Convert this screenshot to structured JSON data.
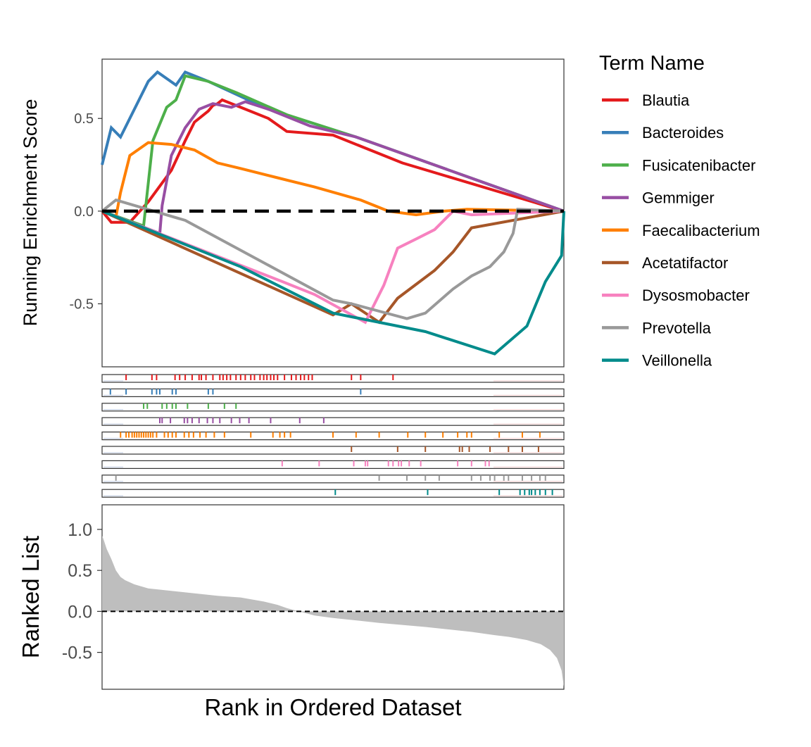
{
  "chart_data": {
    "type": "line",
    "legend": {
      "title": "Term Name",
      "position": "right"
    },
    "es_panel": {
      "ylabel": "Running Enrichment Score",
      "ylim": [
        -0.84,
        0.82
      ],
      "yticks": [
        0.5,
        0.0,
        -0.5
      ],
      "ytick_labels": [
        "0.5",
        "0.0",
        "-0.5"
      ],
      "zero_line": "dashed",
      "series": [
        {
          "name": "Blautia",
          "color": "#E41A1C",
          "x": [
            0,
            20,
            60,
            100,
            150,
            180,
            200,
            230,
            240,
            250,
            260,
            300,
            360,
            400,
            500,
            650,
            1000
          ],
          "y": [
            0,
            -0.06,
            -0.06,
            0.05,
            0.22,
            0.38,
            0.48,
            0.54,
            0.57,
            0.58,
            0.6,
            0.56,
            0.5,
            0.43,
            0.41,
            0.26,
            0
          ]
        },
        {
          "name": "Bacteroides",
          "color": "#377EB8",
          "x": [
            0,
            20,
            40,
            80,
            100,
            120,
            160,
            180,
            230,
            360,
            550,
            1000
          ],
          "y": [
            0.25,
            0.45,
            0.4,
            0.6,
            0.7,
            0.75,
            0.68,
            0.75,
            0.7,
            0.55,
            0.4,
            0
          ]
        },
        {
          "name": "Fusicatenibacter",
          "color": "#4DAF4A",
          "x": [
            0,
            90,
            110,
            140,
            160,
            180,
            230,
            290,
            400,
            550,
            1000
          ],
          "y": [
            0,
            -0.08,
            0.38,
            0.56,
            0.6,
            0.73,
            0.7,
            0.64,
            0.52,
            0.4,
            0
          ]
        },
        {
          "name": "Gemmiger",
          "color": "#984EA3",
          "x": [
            0,
            125,
            130,
            150,
            180,
            210,
            240,
            280,
            310,
            360,
            450,
            550,
            1000
          ],
          "y": [
            0,
            -0.12,
            0.03,
            0.3,
            0.45,
            0.55,
            0.58,
            0.56,
            0.59,
            0.55,
            0.46,
            0.4,
            0
          ]
        },
        {
          "name": "Faecalibacterium",
          "color": "#FF7F00",
          "x": [
            0,
            30,
            40,
            60,
            100,
            150,
            200,
            250,
            300,
            380,
            460,
            560,
            620,
            680,
            740,
            790,
            1000
          ],
          "y": [
            0,
            -0.03,
            0.1,
            0.3,
            0.37,
            0.36,
            0.33,
            0.26,
            0.23,
            0.18,
            0.13,
            0.06,
            0,
            -0.02,
            0,
            0.01,
            0
          ]
        },
        {
          "name": "Acetatifactor",
          "color": "#A65628",
          "x": [
            0,
            500,
            540,
            600,
            640,
            720,
            760,
            800,
            1000
          ],
          "y": [
            0,
            -0.56,
            -0.5,
            -0.6,
            -0.47,
            -0.32,
            -0.22,
            -0.09,
            0
          ]
        },
        {
          "name": "Dysosmobacter",
          "color": "#F781BF",
          "x": [
            0,
            390,
            460,
            570,
            610,
            640,
            680,
            720,
            760,
            800,
            1000
          ],
          "y": [
            0,
            -0.38,
            -0.45,
            -0.6,
            -0.4,
            -0.2,
            -0.15,
            -0.1,
            0.0,
            -0.02,
            0
          ]
        },
        {
          "name": "Prevotella",
          "color": "#999999",
          "x": [
            0,
            30,
            180,
            500,
            540,
            600,
            660,
            700,
            760,
            800,
            840,
            870,
            890,
            900,
            1000
          ],
          "y": [
            0,
            0.06,
            -0.05,
            -0.48,
            -0.5,
            -0.54,
            -0.58,
            -0.55,
            -0.42,
            -0.35,
            -0.3,
            -0.22,
            -0.12,
            0.01,
            0
          ]
        },
        {
          "name": "Veillonella",
          "color": "#008B8B",
          "x": [
            0,
            300,
            500,
            700,
            850,
            920,
            940,
            960,
            980,
            995,
            1000
          ],
          "y": [
            0,
            -0.3,
            -0.55,
            -0.65,
            -0.77,
            -0.62,
            -0.5,
            -0.38,
            -0.3,
            -0.24,
            0
          ]
        }
      ]
    },
    "hit_panel": {
      "rows": [
        {
          "name": "Blautia",
          "hits": [
            52,
            108,
            118,
            158,
            168,
            180,
            195,
            210,
            215,
            225,
            240,
            255,
            262,
            270,
            278,
            290,
            300,
            310,
            322,
            330,
            342,
            350,
            357,
            365,
            372,
            380,
            395,
            410,
            420,
            430,
            438,
            447,
            455,
            540,
            560,
            630
          ]
        },
        {
          "name": "Bacteroides",
          "hits": [
            18,
            52,
            108,
            118,
            125,
            152,
            160,
            230,
            240,
            560
          ]
        },
        {
          "name": "Fusicatenibacter",
          "hits": [
            90,
            98,
            130,
            140,
            152,
            160,
            185,
            230,
            265,
            290
          ]
        },
        {
          "name": "Gemmiger",
          "hits": [
            125,
            130,
            148,
            178,
            185,
            195,
            210,
            228,
            240,
            255,
            280,
            298,
            318,
            365,
            428,
            480
          ]
        },
        {
          "name": "Faecalibacterium",
          "hits": [
            40,
            52,
            58,
            65,
            70,
            75,
            80,
            85,
            90,
            95,
            100,
            105,
            110,
            118,
            135,
            143,
            152,
            160,
            178,
            188,
            198,
            212,
            225,
            243,
            265,
            322,
            370,
            385,
            395,
            408,
            500,
            550,
            600,
            662,
            700,
            738,
            770,
            790,
            800,
            860,
            910,
            948
          ]
        },
        {
          "name": "Acetatifactor",
          "hits": [
            540,
            640,
            700,
            774,
            780,
            795,
            840,
            880,
            910,
            945
          ]
        },
        {
          "name": "Dysosmobacter",
          "hits": [
            390,
            470,
            545,
            570,
            575,
            620,
            630,
            642,
            648,
            665,
            690,
            770,
            800,
            830,
            838
          ]
        },
        {
          "name": "Prevotella",
          "hits": [
            30,
            600,
            660,
            700,
            730,
            800,
            820,
            840,
            850,
            870,
            880,
            910,
            930,
            948,
            960
          ]
        },
        {
          "name": "Veillonella",
          "hits": [
            505,
            705,
            860,
            905,
            915,
            925,
            930,
            938,
            948,
            960,
            975
          ]
        }
      ]
    },
    "rank_panel": {
      "ylabel": "Ranked List",
      "xlabel": "Rank in Ordered Dataset",
      "ylim": [
        -0.95,
        1.3
      ],
      "yticks": [
        1.0,
        0.5,
        0.0,
        -0.5
      ],
      "ytick_labels": [
        "1.0",
        "0.5",
        "0.0",
        "-0.5"
      ],
      "zero_line": "dashed",
      "x": [
        0,
        3,
        10,
        20,
        30,
        40,
        50,
        70,
        100,
        150,
        200,
        250,
        300,
        350,
        380,
        400,
        420,
        440,
        460,
        500,
        600,
        700,
        800,
        850,
        880,
        900,
        920,
        950,
        970,
        985,
        995,
        1000
      ],
      "y": [
        0.92,
        0.88,
        0.76,
        0.64,
        0.5,
        0.42,
        0.38,
        0.33,
        0.28,
        0.25,
        0.22,
        0.19,
        0.17,
        0.12,
        0.08,
        0.04,
        0.01,
        -0.02,
        -0.05,
        -0.08,
        -0.14,
        -0.19,
        -0.25,
        -0.29,
        -0.31,
        -0.33,
        -0.35,
        -0.4,
        -0.47,
        -0.57,
        -0.72,
        -0.92
      ]
    }
  }
}
